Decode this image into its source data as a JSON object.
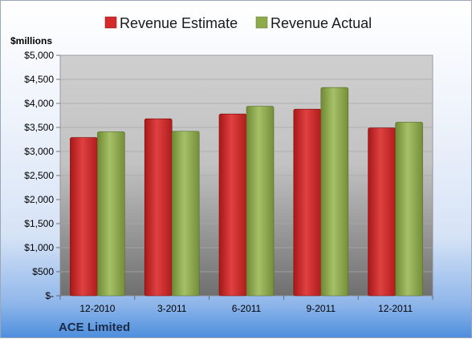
{
  "chart_data": {
    "type": "bar",
    "title": "",
    "unit_label": "$millions",
    "footer": "ACE Limited",
    "categories": [
      "12-2010",
      "3-2011",
      "6-2011",
      "9-2011",
      "12-2011"
    ],
    "series": [
      {
        "name": "Revenue Estimate",
        "color": "#d42a2a",
        "values": [
          3290,
          3680,
          3780,
          3880,
          3490
        ]
      },
      {
        "name": "Revenue Actual",
        "color": "#8faa4a",
        "values": [
          3410,
          3420,
          3940,
          4330,
          3610
        ]
      }
    ],
    "ylim": [
      0,
      5000
    ],
    "yticks": [
      0,
      500,
      1000,
      1500,
      2000,
      2500,
      3000,
      3500,
      4000,
      4500,
      5000
    ],
    "ytick_labels": [
      "$-",
      "$500",
      "$1,000",
      "$1,500",
      "$2,000",
      "$2,500",
      "$3,000",
      "$3,500",
      "$4,000",
      "$4,500",
      "$5,000"
    ],
    "legend_position": "top",
    "grid": true
  }
}
